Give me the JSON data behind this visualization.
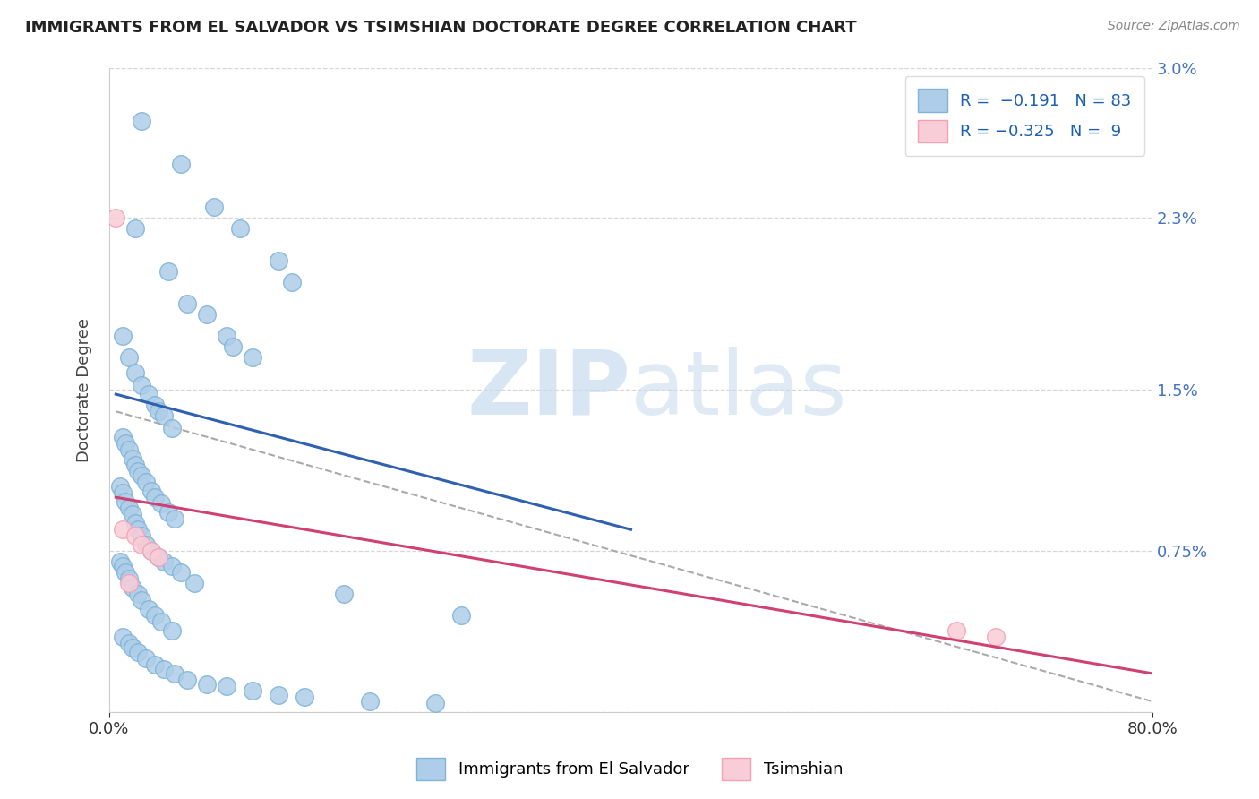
{
  "title": "IMMIGRANTS FROM EL SALVADOR VS TSIMSHIAN DOCTORATE DEGREE CORRELATION CHART",
  "source_text": "Source: ZipAtlas.com",
  "ylabel": "Doctorate Degree",
  "xlim": [
    0.0,
    0.8
  ],
  "ylim": [
    0.0,
    0.03
  ],
  "ytick_vals": [
    0.0,
    0.0075,
    0.015,
    0.023,
    0.03
  ],
  "ytick_labels": [
    "",
    "0.75%",
    "1.5%",
    "2.3%",
    "3.0%"
  ],
  "xtick_vals": [
    0.0,
    0.8
  ],
  "xtick_labels": [
    "0.0%",
    "80.0%"
  ],
  "blue_color": "#7fb3d8",
  "blue_fill": "#aecde8",
  "pink_color": "#f4a0b5",
  "pink_fill": "#f9cdd8",
  "trend_blue": "#3060b0",
  "trend_pink": "#d04070",
  "trend_gray": "#aaaaaa",
  "blue_scatter_x": [
    0.025,
    0.055,
    0.08,
    0.1,
    0.13,
    0.14,
    0.02,
    0.045,
    0.06,
    0.075,
    0.09,
    0.095,
    0.11,
    0.01,
    0.015,
    0.02,
    0.025,
    0.03,
    0.035,
    0.038,
    0.042,
    0.048,
    0.01,
    0.012,
    0.015,
    0.018,
    0.02,
    0.022,
    0.025,
    0.028,
    0.032,
    0.035,
    0.04,
    0.045,
    0.05,
    0.008,
    0.01,
    0.012,
    0.015,
    0.018,
    0.02,
    0.022,
    0.025,
    0.028,
    0.032,
    0.038,
    0.042,
    0.048,
    0.055,
    0.065,
    0.008,
    0.01,
    0.012,
    0.015,
    0.018,
    0.022,
    0.025,
    0.03,
    0.035,
    0.04,
    0.048,
    0.01,
    0.015,
    0.018,
    0.022,
    0.028,
    0.035,
    0.042,
    0.05,
    0.06,
    0.075,
    0.09,
    0.11,
    0.13,
    0.15,
    0.2,
    0.25,
    0.18,
    0.27
  ],
  "blue_scatter_y": [
    0.0275,
    0.0255,
    0.0235,
    0.0225,
    0.021,
    0.02,
    0.0225,
    0.0205,
    0.019,
    0.0185,
    0.0175,
    0.017,
    0.0165,
    0.0175,
    0.0165,
    0.0158,
    0.0152,
    0.0148,
    0.0143,
    0.014,
    0.0138,
    0.0132,
    0.0128,
    0.0125,
    0.0122,
    0.0118,
    0.0115,
    0.0112,
    0.011,
    0.0107,
    0.0103,
    0.01,
    0.0097,
    0.0093,
    0.009,
    0.0105,
    0.0102,
    0.0098,
    0.0095,
    0.0092,
    0.0088,
    0.0085,
    0.0082,
    0.0078,
    0.0075,
    0.0072,
    0.007,
    0.0068,
    0.0065,
    0.006,
    0.007,
    0.0068,
    0.0065,
    0.0062,
    0.0058,
    0.0055,
    0.0052,
    0.0048,
    0.0045,
    0.0042,
    0.0038,
    0.0035,
    0.0032,
    0.003,
    0.0028,
    0.0025,
    0.0022,
    0.002,
    0.0018,
    0.0015,
    0.0013,
    0.0012,
    0.001,
    0.0008,
    0.0007,
    0.0005,
    0.0004,
    0.0055,
    0.0045
  ],
  "pink_scatter_x": [
    0.005,
    0.01,
    0.02,
    0.025,
    0.032,
    0.038,
    0.015,
    0.65,
    0.68
  ],
  "pink_scatter_y": [
    0.023,
    0.0085,
    0.0082,
    0.0078,
    0.0075,
    0.0072,
    0.006,
    0.0038,
    0.0035
  ],
  "blue_line_x": [
    0.005,
    0.4
  ],
  "blue_line_y": [
    0.0148,
    0.0085
  ],
  "pink_line_x": [
    0.005,
    0.8
  ],
  "pink_line_y": [
    0.01,
    0.0018
  ],
  "gray_line_x": [
    0.005,
    0.8
  ],
  "gray_line_y": [
    0.014,
    0.0005
  ],
  "bottom_legend": [
    "Immigrants from El Salvador",
    "Tsimshian"
  ]
}
